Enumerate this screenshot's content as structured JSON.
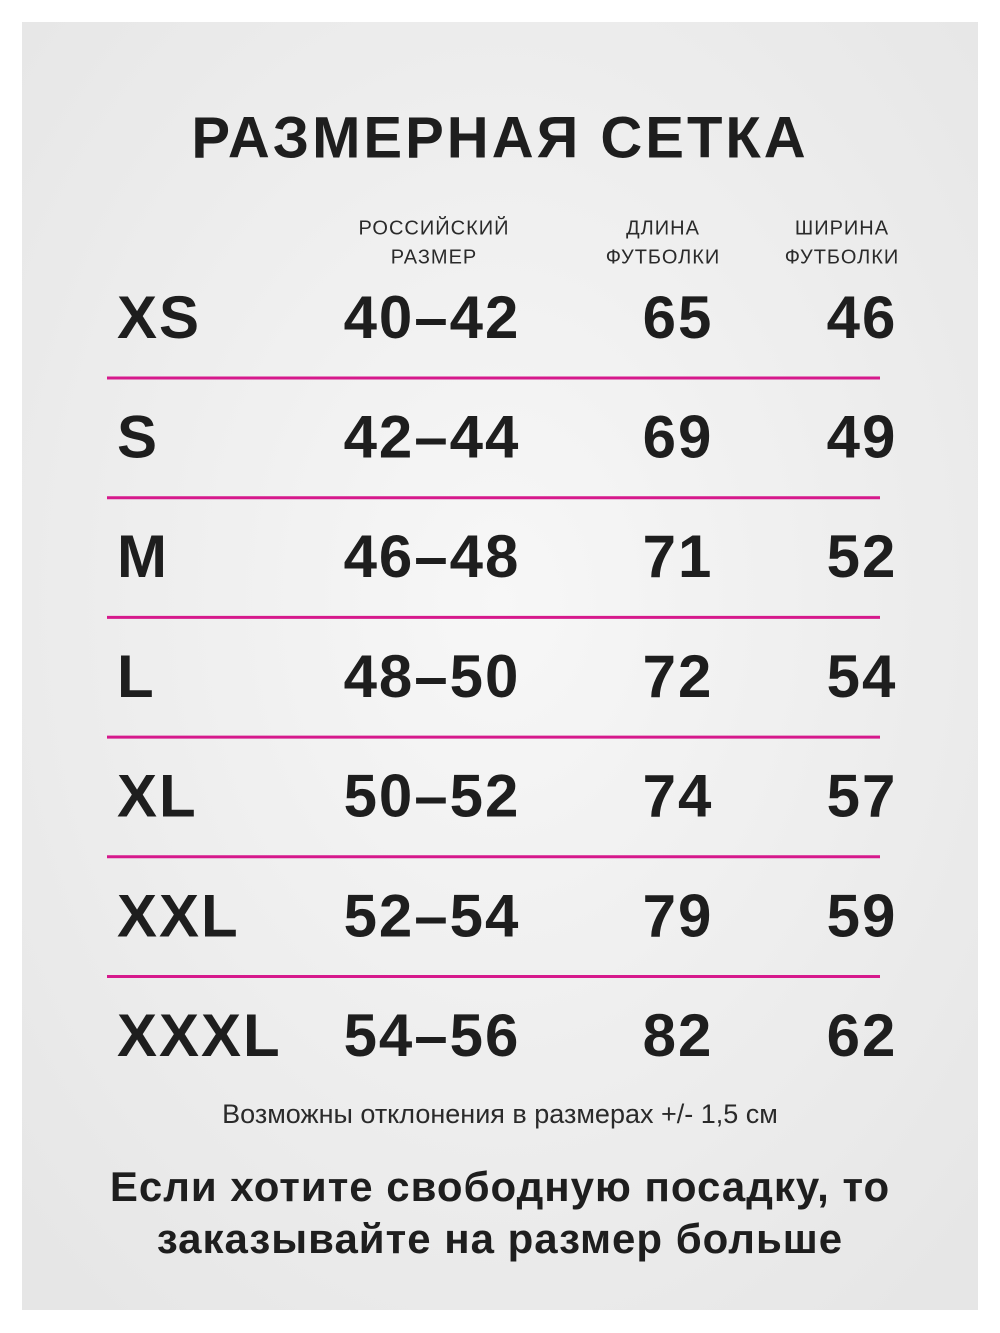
{
  "title": "РАЗМЕРНАЯ СЕТКА",
  "table": {
    "headers": [
      [
        "РОССИЙСКИЙ",
        "РАЗМЕР"
      ],
      [
        "ДЛИНА",
        "ФУТБОЛКИ"
      ],
      [
        "ШИРИНА",
        "ФУТБОЛКИ"
      ]
    ],
    "rows": [
      [
        "XS",
        "40–42",
        "65",
        "46"
      ],
      [
        "S",
        "42–44",
        "69",
        "49"
      ],
      [
        "M",
        "46–48",
        "71",
        "52"
      ],
      [
        "L",
        "48–50",
        "72",
        "54"
      ],
      [
        "XL",
        "50–52",
        "74",
        "57"
      ],
      [
        "XXL",
        "52–54",
        "79",
        "59"
      ],
      [
        "XXXL",
        "54–56",
        "82",
        "62"
      ]
    ]
  },
  "note": "Возможны отклонения в размерах +/- 1,5 см",
  "advice": [
    "Если хотите свободную посадку, то",
    "заказывайте на размер больше"
  ]
}
